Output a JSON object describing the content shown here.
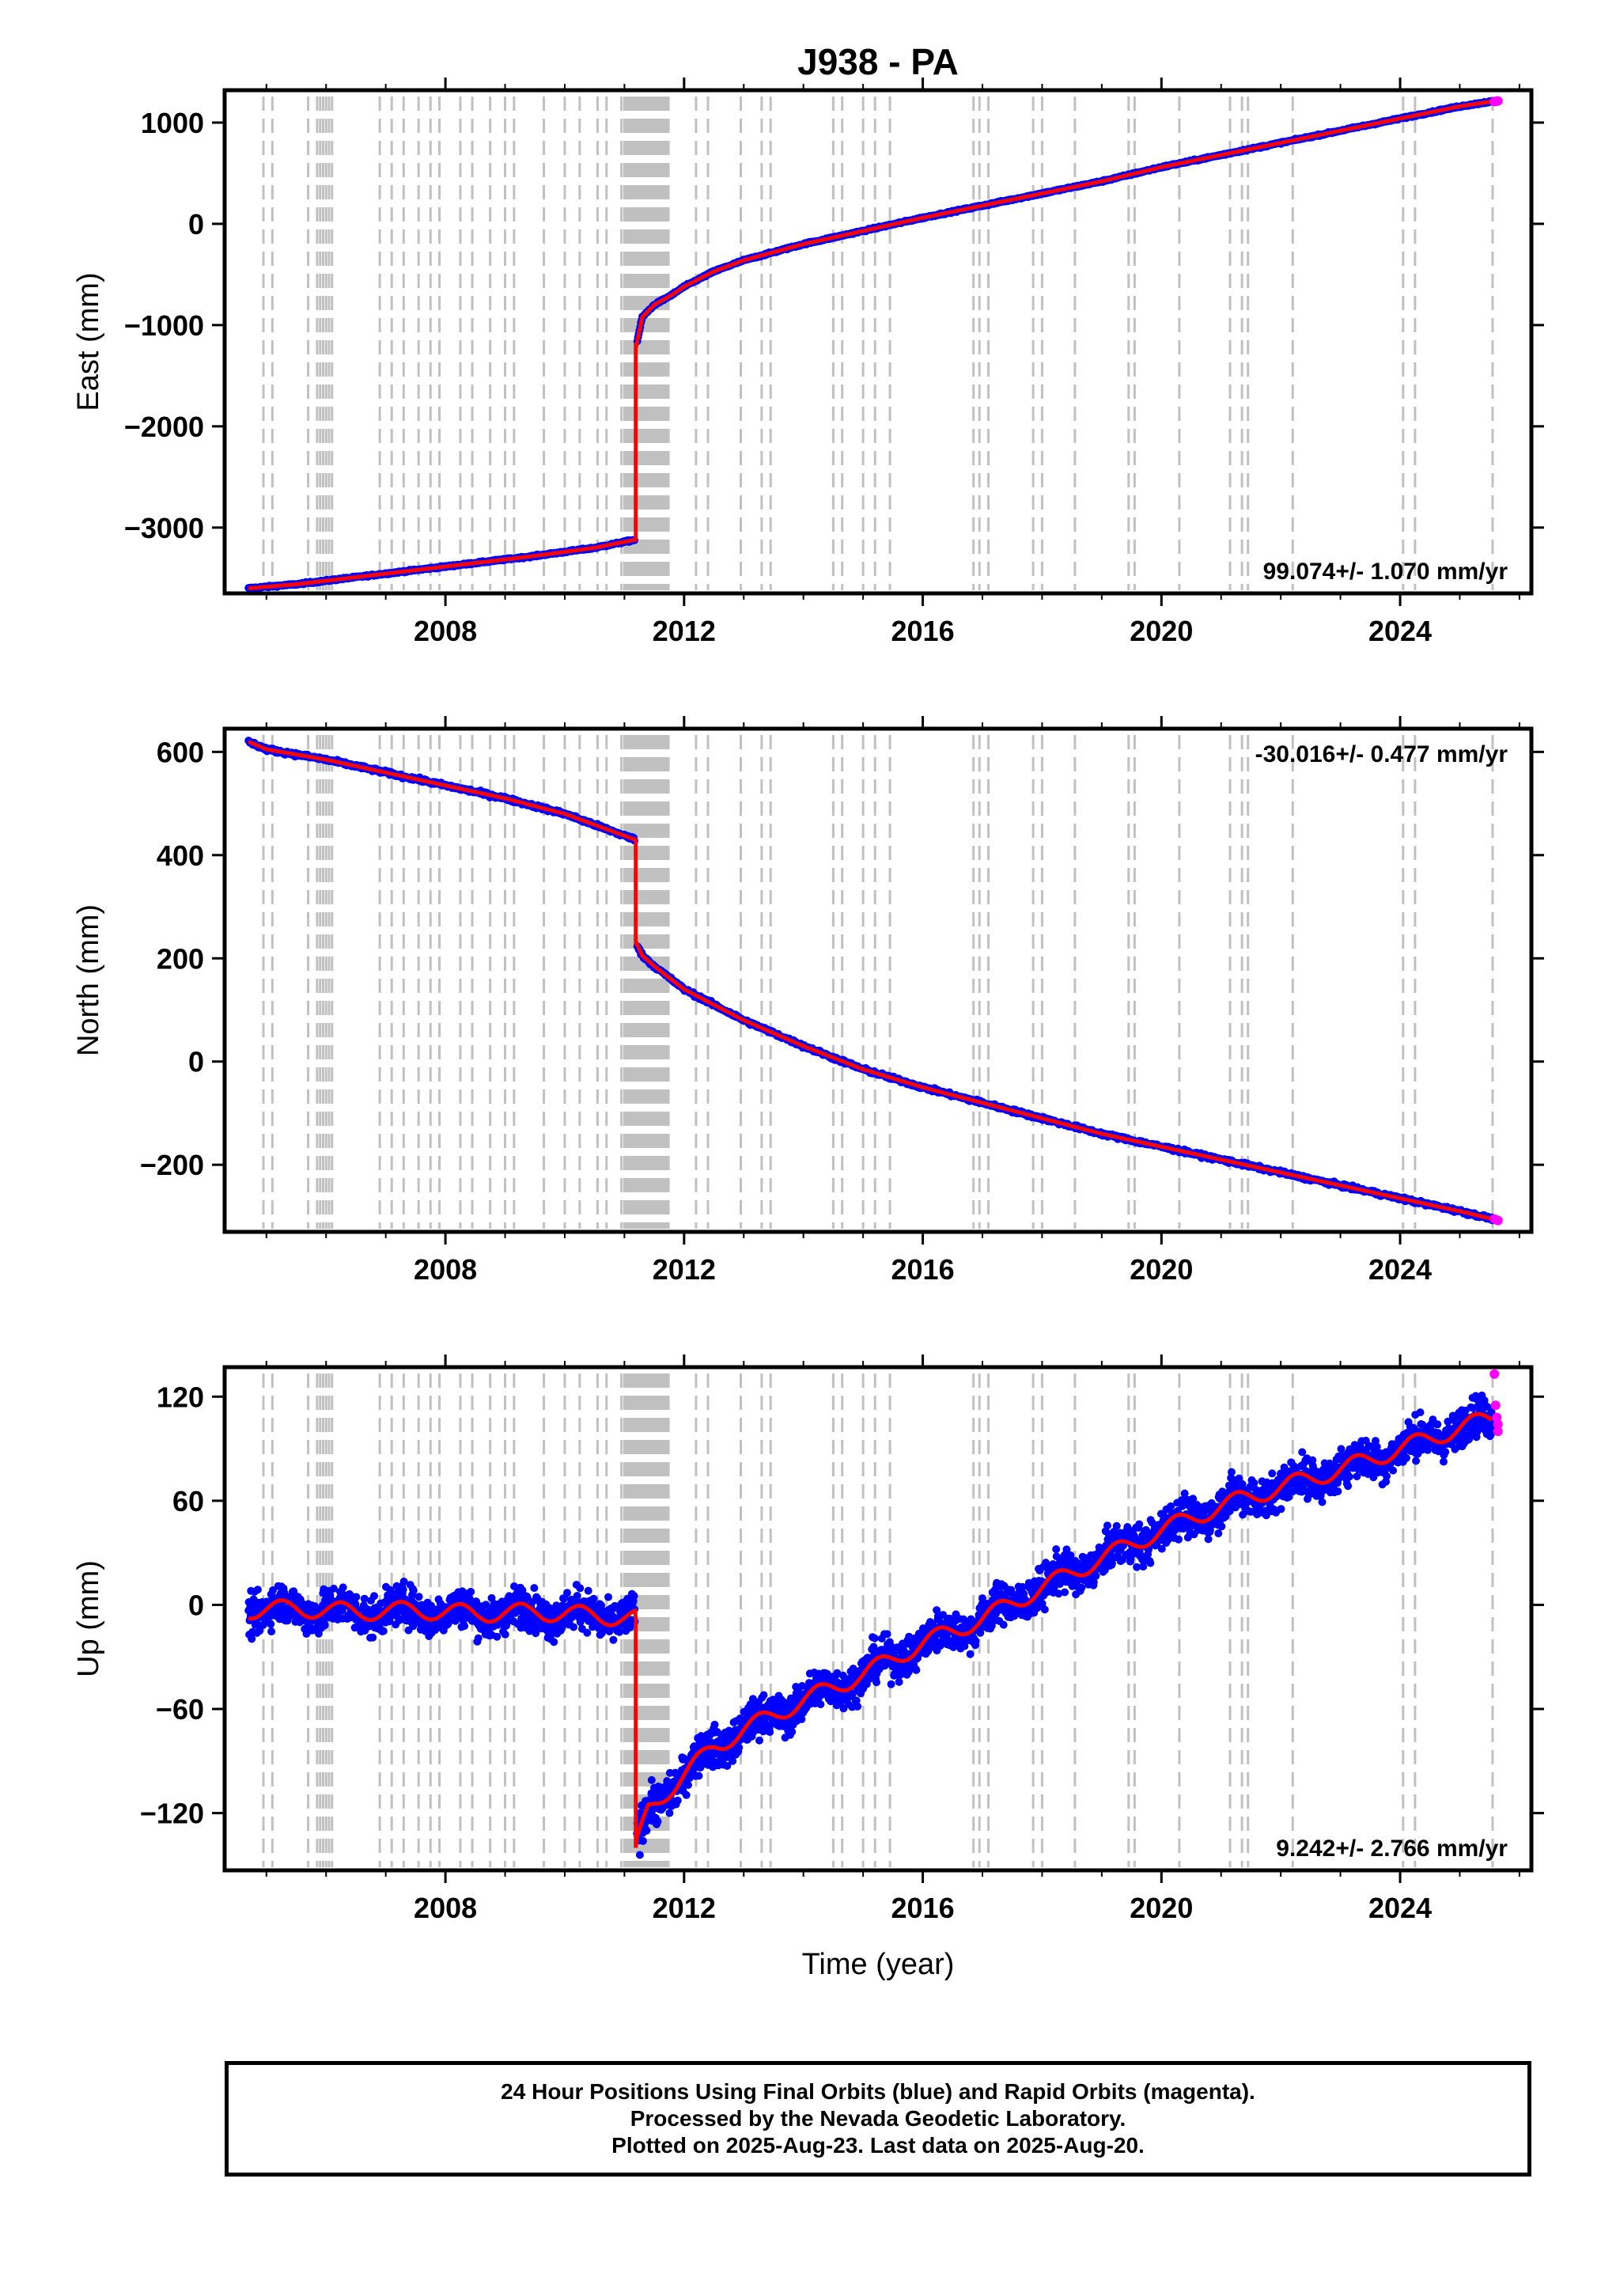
{
  "figure": {
    "title": "J938 - PA",
    "xlabel": "Time (year)"
  },
  "chart_data": [
    {
      "type": "scatter",
      "panel": "east",
      "ylabel": "East (mm)",
      "rate_label": "99.074+/- 1.070 mm/yr",
      "rate_label_position": "bottom-right",
      "xlim": [
        2004.3,
        2026.2
      ],
      "ylim": [
        -3650,
        1320
      ],
      "xticks": [
        2008,
        2012,
        2016,
        2020,
        2024
      ],
      "xtick_labels": [
        "2008",
        "2012",
        "2016",
        "2020",
        "2024"
      ],
      "yticks": [
        -3000,
        -2000,
        -1000,
        0,
        1000
      ],
      "ytick_labels": [
        "−3000",
        "−2000",
        "−1000",
        "0",
        "1000"
      ],
      "earthquake_offset_x": 2011.19,
      "series": [
        {
          "name": "Final Orbits",
          "color": "#0000ff",
          "x": [
            2004.7,
            2005.5,
            2006.5,
            2007.5,
            2008.5,
            2009.5,
            2010.5,
            2011.18,
            2011.2,
            2011.3,
            2011.5,
            2011.8,
            2012.0,
            2012.5,
            2013.0,
            2013.5,
            2014.0,
            2015.0,
            2016.0,
            2017.0,
            2018.0,
            2019.0,
            2020.0,
            2021.0,
            2022.0,
            2023.0,
            2024.0,
            2025.0,
            2025.55
          ],
          "y": [
            -3600,
            -3560,
            -3490,
            -3420,
            -3350,
            -3280,
            -3200,
            -3120,
            -1200,
            -920,
            -800,
            -700,
            -620,
            -470,
            -360,
            -280,
            -200,
            -70,
            60,
            180,
            300,
            420,
            560,
            680,
            800,
            920,
            1040,
            1160,
            1210
          ]
        },
        {
          "name": "Rapid Orbits",
          "color": "#ff00ff",
          "x": [
            2025.58,
            2025.62,
            2025.64
          ],
          "y": [
            1208,
            1212,
            1214
          ]
        }
      ]
    },
    {
      "type": "scatter",
      "panel": "north",
      "ylabel": "North (mm)",
      "rate_label": "-30.016+/- 0.477 mm/yr",
      "rate_label_position": "top-right",
      "xlim": [
        2004.3,
        2026.2
      ],
      "ylim": [
        -330,
        645
      ],
      "xticks": [
        2008,
        2012,
        2016,
        2020,
        2024
      ],
      "xtick_labels": [
        "2008",
        "2012",
        "2016",
        "2020",
        "2024"
      ],
      "yticks": [
        -200,
        0,
        200,
        400,
        600
      ],
      "ytick_labels": [
        "−200",
        "0",
        "200",
        "400",
        "600"
      ],
      "earthquake_offset_x": 2011.19,
      "series": [
        {
          "name": "Final Orbits",
          "color": "#0000ff",
          "x": [
            2004.7,
            2005.0,
            2006.0,
            2007.0,
            2008.0,
            2009.0,
            2010.0,
            2011.18,
            2011.2,
            2011.3,
            2011.5,
            2012.0,
            2013.0,
            2014.0,
            2015.0,
            2016.0,
            2017.0,
            2018.0,
            2019.0,
            2020.0,
            2021.0,
            2022.0,
            2023.0,
            2024.0,
            2025.0,
            2025.55
          ],
          "y": [
            620,
            605,
            585,
            560,
            535,
            510,
            480,
            430,
            230,
            205,
            185,
            140,
            80,
            30,
            -15,
            -50,
            -80,
            -110,
            -140,
            -165,
            -190,
            -215,
            -240,
            -265,
            -290,
            -305
          ]
        },
        {
          "name": "Rapid Orbits",
          "color": "#ff00ff",
          "x": [
            2025.58,
            2025.62,
            2025.64
          ],
          "y": [
            -305,
            -307,
            -308
          ]
        }
      ]
    },
    {
      "type": "scatter",
      "panel": "up",
      "ylabel": "Up (mm)",
      "rate_label": "9.242+/- 2.766 mm/yr",
      "rate_label_position": "bottom-right",
      "xlim": [
        2004.3,
        2026.2
      ],
      "ylim": [
        -153,
        137
      ],
      "xticks": [
        2008,
        2012,
        2016,
        2020,
        2024
      ],
      "xtick_labels": [
        "2008",
        "2012",
        "2016",
        "2020",
        "2024"
      ],
      "yticks": [
        -120,
        -60,
        0,
        60,
        120
      ],
      "ytick_labels": [
        "−120",
        "−60",
        "0",
        "60",
        "120"
      ],
      "earthquake_offset_x": 2011.19,
      "series": [
        {
          "name": "Final Orbits",
          "color": "#0000ff",
          "scatter_sd": 8,
          "x": [
            2004.7,
            2005.5,
            2006.5,
            2007.5,
            2008.5,
            2009.5,
            2010.5,
            2011.18,
            2011.2,
            2011.4,
            2012.0,
            2012.5,
            2013.0,
            2014.0,
            2015.0,
            2016.0,
            2017.0,
            2018.0,
            2019.0,
            2020.0,
            2021.0,
            2022.0,
            2023.0,
            2024.0,
            2025.0,
            2025.55
          ],
          "y": [
            -3,
            -2,
            -4,
            -3,
            -5,
            -4,
            -6,
            -8,
            -140,
            -118,
            -98,
            -82,
            -72,
            -55,
            -40,
            -22,
            -8,
            10,
            27,
            43,
            57,
            68,
            78,
            90,
            102,
            108
          ]
        },
        {
          "name": "Rapid Orbits",
          "color": "#ff00ff",
          "x": [
            2025.58,
            2025.6,
            2025.62,
            2025.64,
            2025.64
          ],
          "y": [
            133,
            115,
            108,
            104,
            100
          ]
        }
      ]
    }
  ],
  "gap_marks": {
    "color": "#c0c0c0",
    "years": [
      2004.95,
      2005.1,
      2005.7,
      2005.85,
      2005.9,
      2005.95,
      2006.0,
      2006.05,
      2006.1,
      2006.9,
      2007.1,
      2007.3,
      2007.55,
      2007.75,
      2007.9,
      2008.25,
      2008.45,
      2008.75,
      2009.0,
      2009.15,
      2009.65,
      2010.0,
      2010.25,
      2010.55,
      2010.7,
      2010.95
    ],
    "dense_band": [
      2011.0,
      2011.75
    ],
    "years_after": [
      2012.2,
      2012.4,
      2012.95,
      2013.3,
      2013.45,
      2014.5,
      2014.65,
      2015.0,
      2015.2,
      2015.45,
      2016.85,
      2016.95,
      2017.1,
      2017.85,
      2018.0,
      2018.55,
      2019.45,
      2019.55,
      2020.3,
      2021.15,
      2021.35,
      2021.45,
      2022.2,
      2024.05,
      2024.25,
      2025.55
    ]
  },
  "footer": {
    "line1": "24 Hour Positions Using Final Orbits (blue) and Rapid Orbits (magenta).",
    "line2": "Processed by the Nevada Geodetic Laboratory.",
    "line3": "Plotted on 2025-Aug-23. Last data on 2025-Aug-20."
  }
}
